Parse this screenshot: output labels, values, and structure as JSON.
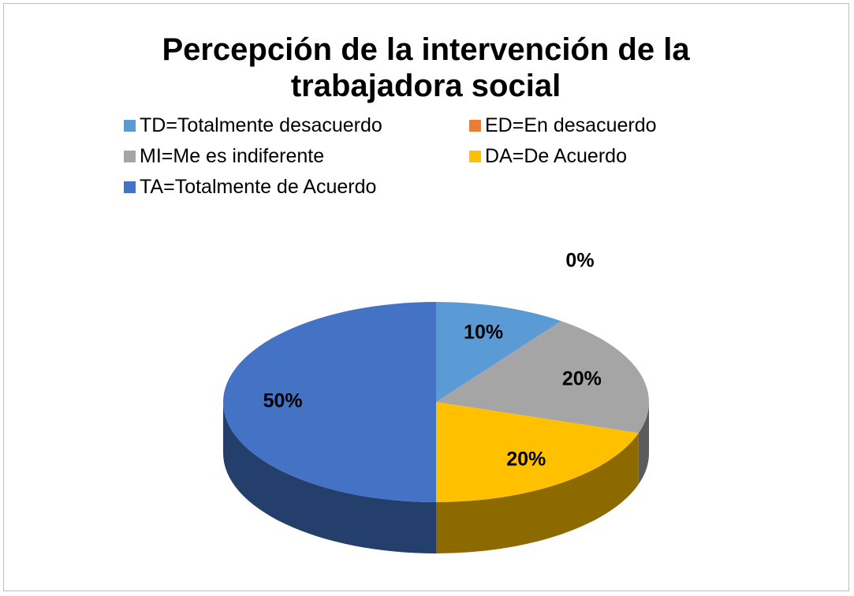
{
  "chart_data": {
    "type": "pie3d",
    "title": "Percepción de la intervención de la trabajadora social",
    "categories": [
      "TD=Totalmente desacuerdo",
      "ED=En desacuerdo",
      "MI=Me es indiferente",
      "DA=De Acuerdo",
      "TA=Totalmente de Acuerdo"
    ],
    "values": [
      10,
      0,
      20,
      20,
      50
    ],
    "value_labels": [
      "10%",
      "0%",
      "20%",
      "20%",
      "50%"
    ],
    "colors": [
      "#5b9bd5",
      "#ed7d31",
      "#a5a5a5",
      "#ffc000",
      "#4472c4"
    ],
    "legend": "top"
  }
}
